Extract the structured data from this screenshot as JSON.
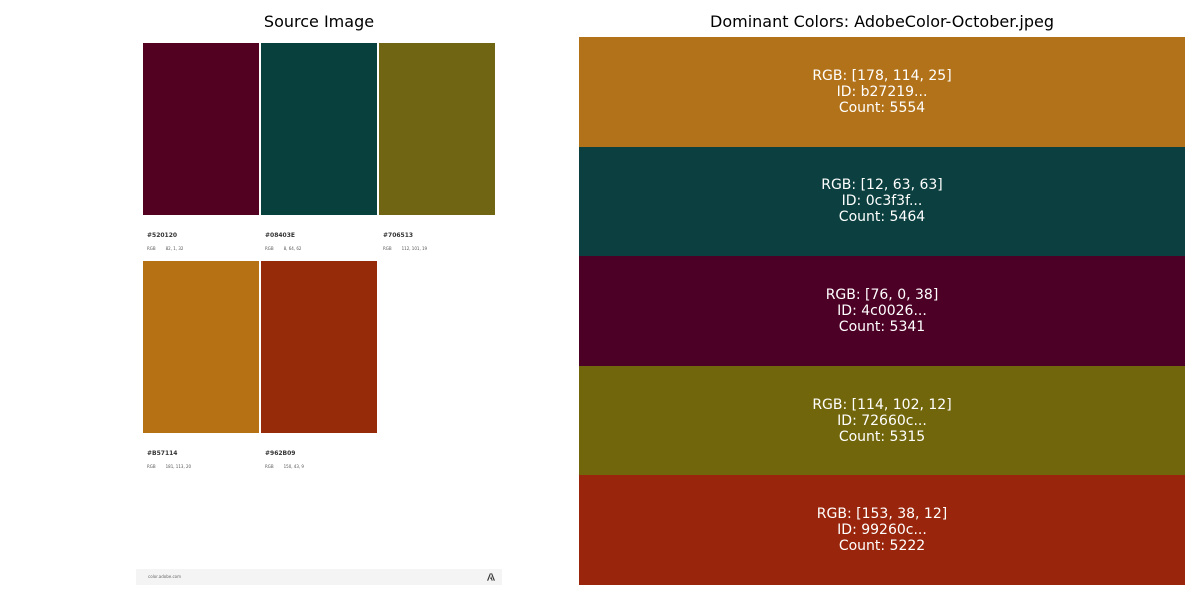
{
  "left_panel": {
    "title": "Source Image",
    "swatches": [
      {
        "hex": "#520120",
        "rgb_label": "RGB",
        "rgb_value": "82, 1, 32",
        "color": "#520120"
      },
      {
        "hex": "#08403E",
        "rgb_label": "RGB",
        "rgb_value": "8, 64, 62",
        "color": "#08403E"
      },
      {
        "hex": "#706513",
        "rgb_label": "RGB",
        "rgb_value": "112, 101, 19",
        "color": "#706513"
      },
      {
        "hex": "#B57114",
        "rgb_label": "RGB",
        "rgb_value": "181, 113, 20",
        "color": "#B57114"
      },
      {
        "hex": "#962B09",
        "rgb_label": "RGB",
        "rgb_value": "150, 43, 9",
        "color": "#962B09"
      }
    ],
    "footer": {
      "url": "color.adobe.com",
      "logo_icon": "adobe-logo-icon"
    }
  },
  "right_panel": {
    "title": "Dominant Colors: AdobeColor-October.jpeg"
  },
  "chart_data": {
    "type": "bar",
    "title": "Dominant Colors: AdobeColor-October.jpeg",
    "orientation": "stacked-horizontal-bands",
    "grid": false,
    "series": [
      {
        "rgb_text": "RGB: [178, 114, 25]",
        "id_text": "ID: b27219...",
        "count_text": "Count: 5554",
        "rgb": [
          178,
          114,
          25
        ],
        "count": 5554,
        "color": "#b27219"
      },
      {
        "rgb_text": "RGB: [12, 63, 63]",
        "id_text": "ID: 0c3f3f...",
        "count_text": "Count: 5464",
        "rgb": [
          12,
          63,
          63
        ],
        "count": 5464,
        "color": "#0c3f3f"
      },
      {
        "rgb_text": "RGB: [76, 0, 38]",
        "id_text": "ID: 4c0026...",
        "count_text": "Count: 5341",
        "rgb": [
          76,
          0,
          38
        ],
        "count": 5341,
        "color": "#4c0026"
      },
      {
        "rgb_text": "RGB: [114, 102, 12]",
        "id_text": "ID: 72660c...",
        "count_text": "Count: 5315",
        "rgb": [
          114,
          102,
          12
        ],
        "count": 5315,
        "color": "#72660c"
      },
      {
        "rgb_text": "RGB: [153, 38, 12]",
        "id_text": "ID: 99260c...",
        "count_text": "Count: 5222",
        "rgb": [
          153,
          38,
          12
        ],
        "count": 5222,
        "color": "#99260c"
      }
    ]
  }
}
